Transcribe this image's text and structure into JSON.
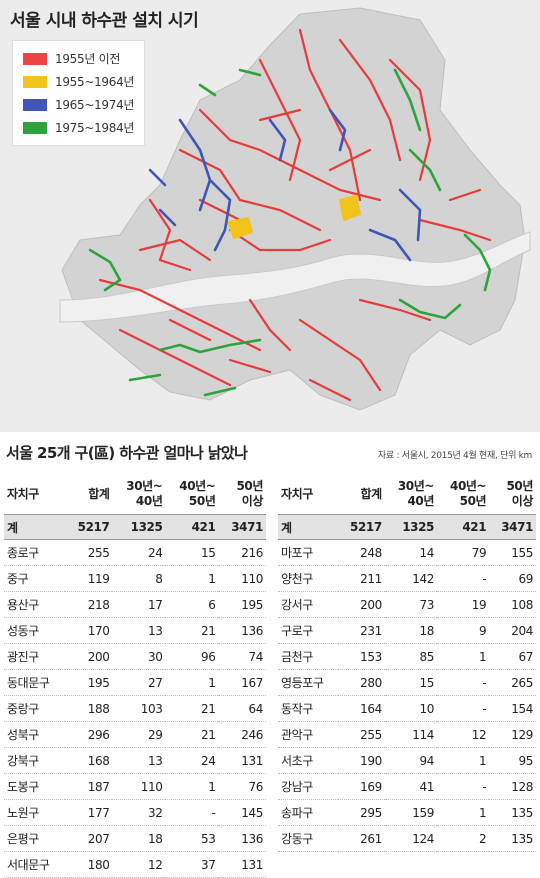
{
  "map": {
    "title": "서울 시내 하수관 설치 시기",
    "legend": [
      {
        "label": "1955년 이전",
        "color": "#ee4444"
      },
      {
        "label": "1955~1964년",
        "color": "#f2c31a"
      },
      {
        "label": "1965~1974년",
        "color": "#3f56b8"
      },
      {
        "label": "1975~1984년",
        "color": "#2ea33b"
      }
    ]
  },
  "table": {
    "title": "서울 25개 구(區) 하수관 얼마나 낡았나",
    "source": "자료 : 서울시, 2015년 4월 현재, 단위 km",
    "headers": {
      "district": "자치구",
      "total": "합계",
      "c30_line1": "30년~",
      "c30_line2": "40년",
      "c40_line1": "40년~",
      "c40_line2": "50년",
      "c50_line1": "50년",
      "c50_line2": "이상"
    },
    "total_row": {
      "district": "계",
      "total": "5217",
      "c30": "1325",
      "c40": "421",
      "c50": "3471"
    },
    "left_rows": [
      {
        "district": "종로구",
        "total": "255",
        "c30": "24",
        "c40": "15",
        "c50": "216"
      },
      {
        "district": "중구",
        "total": "119",
        "c30": "8",
        "c40": "1",
        "c50": "110"
      },
      {
        "district": "용산구",
        "total": "218",
        "c30": "17",
        "c40": "6",
        "c50": "195"
      },
      {
        "district": "성동구",
        "total": "170",
        "c30": "13",
        "c40": "21",
        "c50": "136"
      },
      {
        "district": "광진구",
        "total": "200",
        "c30": "30",
        "c40": "96",
        "c50": "74"
      },
      {
        "district": "동대문구",
        "total": "195",
        "c30": "27",
        "c40": "1",
        "c50": "167"
      },
      {
        "district": "중랑구",
        "total": "188",
        "c30": "103",
        "c40": "21",
        "c50": "64"
      },
      {
        "district": "성북구",
        "total": "296",
        "c30": "29",
        "c40": "21",
        "c50": "246"
      },
      {
        "district": "강북구",
        "total": "168",
        "c30": "13",
        "c40": "24",
        "c50": "131"
      },
      {
        "district": "도봉구",
        "total": "187",
        "c30": "110",
        "c40": "1",
        "c50": "76"
      },
      {
        "district": "노원구",
        "total": "177",
        "c30": "32",
        "c40": "-",
        "c50": "145"
      },
      {
        "district": "은평구",
        "total": "207",
        "c30": "18",
        "c40": "53",
        "c50": "136"
      },
      {
        "district": "서대문구",
        "total": "180",
        "c30": "12",
        "c40": "37",
        "c50": "131"
      }
    ],
    "right_rows": [
      {
        "district": "마포구",
        "total": "248",
        "c30": "14",
        "c40": "79",
        "c50": "155"
      },
      {
        "district": "양천구",
        "total": "211",
        "c30": "142",
        "c40": "-",
        "c50": "69"
      },
      {
        "district": "강서구",
        "total": "200",
        "c30": "73",
        "c40": "19",
        "c50": "108"
      },
      {
        "district": "구로구",
        "total": "231",
        "c30": "18",
        "c40": "9",
        "c50": "204"
      },
      {
        "district": "금천구",
        "total": "153",
        "c30": "85",
        "c40": "1",
        "c50": "67"
      },
      {
        "district": "영등포구",
        "total": "280",
        "c30": "15",
        "c40": "-",
        "c50": "265"
      },
      {
        "district": "동작구",
        "total": "164",
        "c30": "10",
        "c40": "-",
        "c50": "154"
      },
      {
        "district": "관악구",
        "total": "255",
        "c30": "114",
        "c40": "12",
        "c50": "129"
      },
      {
        "district": "서초구",
        "total": "190",
        "c30": "94",
        "c40": "1",
        "c50": "95"
      },
      {
        "district": "강남구",
        "total": "169",
        "c30": "41",
        "c40": "-",
        "c50": "128"
      },
      {
        "district": "송파구",
        "total": "295",
        "c30": "159",
        "c40": "1",
        "c50": "135"
      },
      {
        "district": "강동구",
        "total": "261",
        "c30": "124",
        "c40": "2",
        "c50": "135"
      }
    ]
  }
}
